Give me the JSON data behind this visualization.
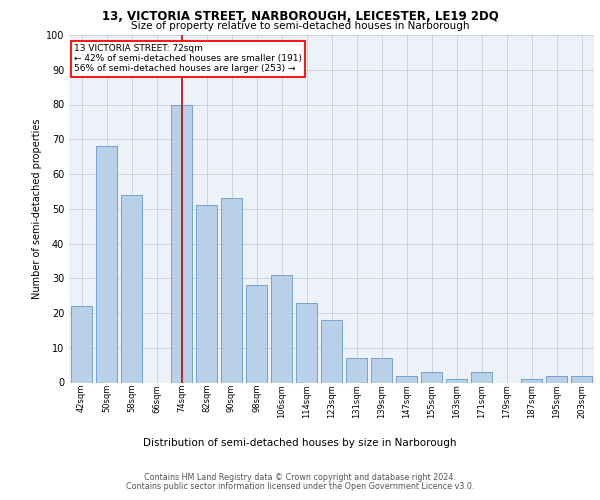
{
  "title1": "13, VICTORIA STREET, NARBOROUGH, LEICESTER, LE19 2DQ",
  "title2": "Size of property relative to semi-detached houses in Narborough",
  "xlabel": "Distribution of semi-detached houses by size in Narborough",
  "ylabel": "Number of semi-detached properties",
  "categories": [
    "42sqm",
    "50sqm",
    "58sqm",
    "66sqm",
    "74sqm",
    "82sqm",
    "90sqm",
    "98sqm",
    "106sqm",
    "114sqm",
    "123sqm",
    "131sqm",
    "139sqm",
    "147sqm",
    "155sqm",
    "163sqm",
    "171sqm",
    "179sqm",
    "187sqm",
    "195sqm",
    "203sqm"
  ],
  "values": [
    22,
    68,
    54,
    0,
    80,
    51,
    53,
    28,
    31,
    23,
    18,
    7,
    7,
    2,
    3,
    1,
    3,
    0,
    1,
    2,
    2
  ],
  "bar_color": "#b8d0e8",
  "bar_edge_color": "#6699cc",
  "highlight_bar_index": 4,
  "highlight_color": "#cc0000",
  "annotation_title": "13 VICTORIA STREET: 72sqm",
  "annotation_line1": "← 42% of semi-detached houses are smaller (191)",
  "annotation_line2": "56% of semi-detached houses are larger (253) →",
  "footer1": "Contains HM Land Registry data © Crown copyright and database right 2024.",
  "footer2": "Contains public sector information licensed under the Open Government Licence v3.0.",
  "ylim": [
    0,
    100
  ],
  "background_color": "#edf1f8"
}
